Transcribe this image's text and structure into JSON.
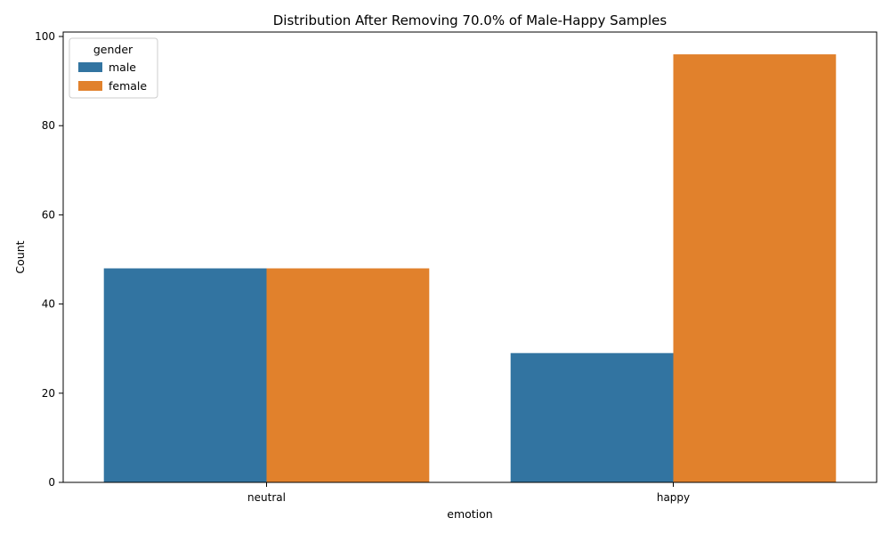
{
  "chart_data": {
    "type": "bar",
    "title": "Distribution After Removing 70.0% of Male-Happy Samples",
    "xlabel": "emotion",
    "ylabel": "Count",
    "categories": [
      "neutral",
      "happy"
    ],
    "series": [
      {
        "name": "male",
        "values": [
          48,
          29
        ],
        "color": "#3274a1"
      },
      {
        "name": "female",
        "values": [
          48,
          96
        ],
        "color": "#e1812c"
      }
    ],
    "ylim": [
      0,
      101
    ],
    "yticks": [
      0,
      20,
      40,
      60,
      80,
      100
    ],
    "legend": {
      "title": "gender",
      "placement": "top-left"
    },
    "grid": false
  }
}
